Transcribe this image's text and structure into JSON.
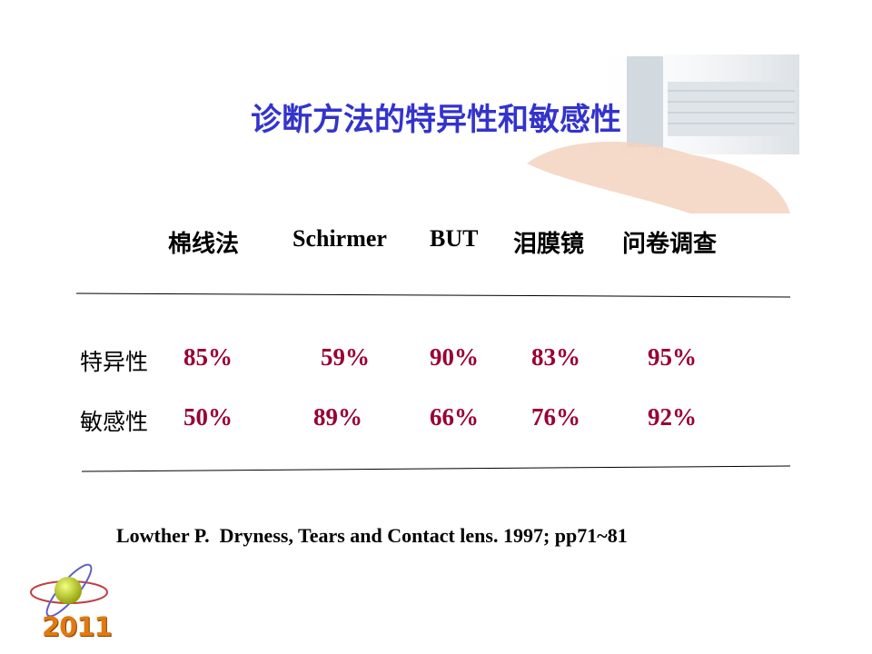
{
  "title": "诊断方法的特异性和敏感性",
  "table": {
    "columns": [
      "棉线法",
      "Schirmer",
      "BUT",
      "泪膜镜",
      "问卷调查"
    ],
    "rows": [
      [
        "特异性",
        "85%",
        "59%",
        "90%",
        "83%",
        "95%"
      ],
      [
        "敏感性",
        "50%",
        "89%",
        "66%",
        "76%",
        "92%"
      ]
    ]
  },
  "citation": "Lowther P.  Dryness, Tears and Contact lens. 1997; pp71~81",
  "logo": {
    "year": "2011"
  }
}
